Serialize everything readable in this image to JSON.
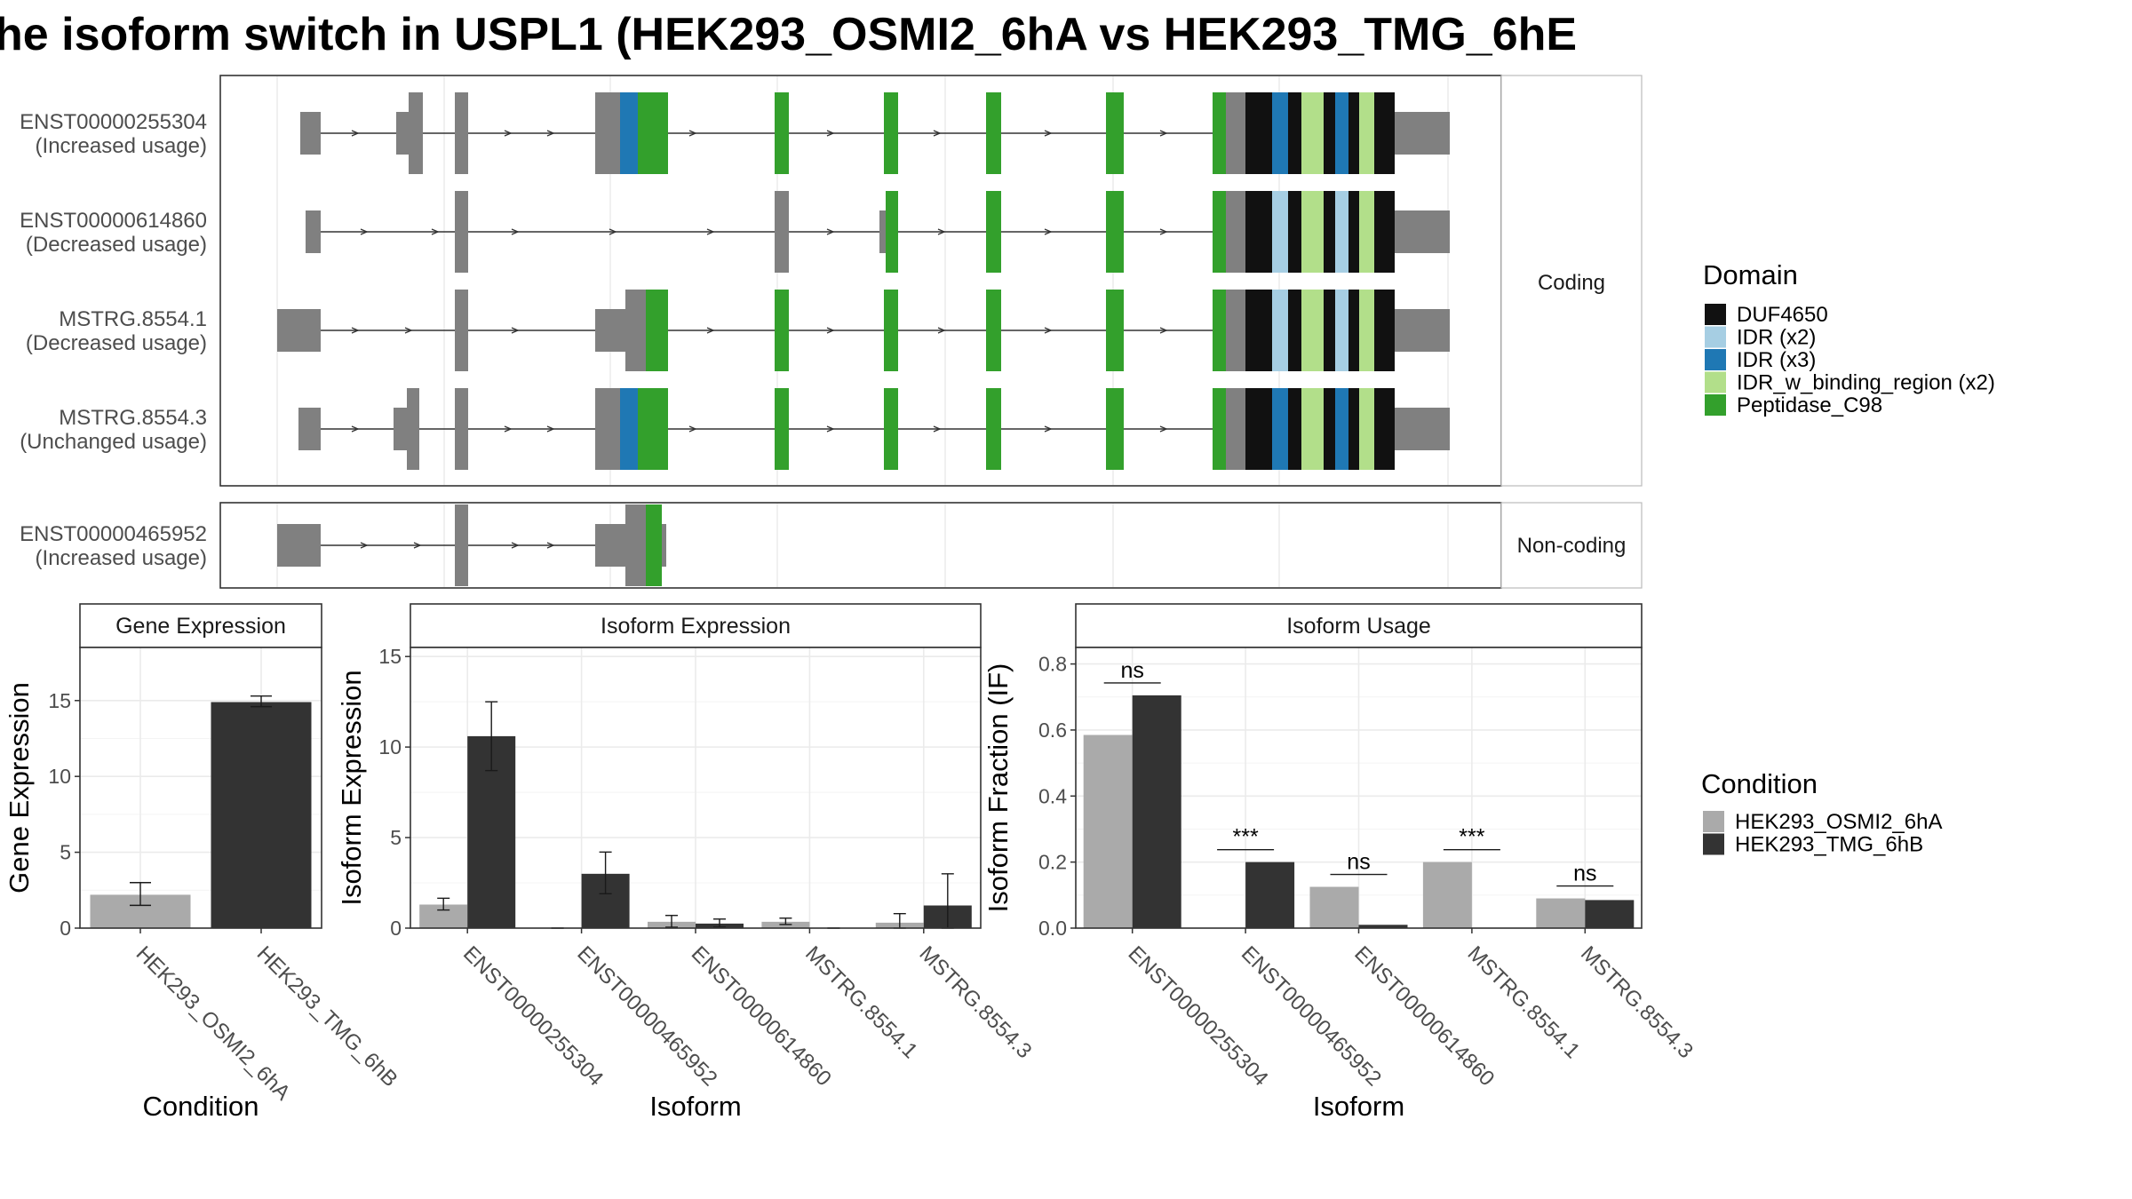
{
  "title": "he isoform switch in USPL1 (HEK293_OSMI2_6hA vs HEK293_TMG_6hE",
  "structure": {
    "coding_strip": "Coding",
    "noncoding_strip": "Non-coding",
    "transcripts": [
      {
        "id": "ENST00000255304",
        "usage": "(Increased usage)"
      },
      {
        "id": "ENST00000614860",
        "usage": "(Decreased usage)"
      },
      {
        "id": "MSTRG.8554.1",
        "usage": "(Decreased usage)"
      },
      {
        "id": "MSTRG.8554.3",
        "usage": "(Unchanged usage)"
      },
      {
        "id": "ENST00000465952",
        "usage": "(Increased usage)"
      }
    ]
  },
  "domain_legend": {
    "title": "Domain",
    "items": [
      {
        "label": "DUF4650",
        "color": "#111111"
      },
      {
        "label": "IDR (x2)",
        "color": "#a6cee3"
      },
      {
        "label": "IDR (x3)",
        "color": "#1f78b4"
      },
      {
        "label": "IDR_w_binding_region (x2)",
        "color": "#b2df8a"
      },
      {
        "label": "Peptidase_C98",
        "color": "#33a02c"
      }
    ]
  },
  "condition_legend": {
    "title": "Condition",
    "items": [
      {
        "label": "HEK293_OSMI2_6hA",
        "color": "#aaaaaa"
      },
      {
        "label": "HEK293_TMG_6hB",
        "color": "#333333"
      }
    ]
  },
  "chart_data": [
    {
      "type": "bar",
      "title": "Gene Expression",
      "xlabel": "Condition",
      "ylabel": "Gene Expression",
      "ylim": [
        0,
        18.5
      ],
      "yticks": [
        0,
        5,
        10,
        15
      ],
      "categories": [
        "HEK293_OSMI2_6hA",
        "HEK293_TMG_6hB"
      ],
      "values": [
        2.2,
        14.9
      ],
      "errors": [
        [
          1.5,
          3.0
        ],
        [
          14.6,
          15.3
        ]
      ]
    },
    {
      "type": "bar",
      "title": "Isoform Expression",
      "xlabel": "Isoform",
      "ylabel": "Isoform Expression",
      "ylim": [
        0,
        15.5
      ],
      "yticks": [
        0,
        5,
        10,
        15
      ],
      "categories": [
        "ENST00000255304",
        "ENST00000465952",
        "ENST00000614860",
        "MSTRG.8554.1",
        "MSTRG.8554.3"
      ],
      "series": [
        {
          "name": "HEK293_OSMI2_6hA",
          "values": [
            1.3,
            0.0,
            0.35,
            0.35,
            0.3
          ],
          "errors": [
            [
              1.0,
              1.65
            ],
            [
              0,
              0
            ],
            [
              0.05,
              0.7
            ],
            [
              0.2,
              0.55
            ],
            [
              0.0,
              0.8
            ]
          ]
        },
        {
          "name": "HEK293_TMG_6hB",
          "values": [
            10.6,
            3.0,
            0.25,
            0.0,
            1.25
          ],
          "errors": [
            [
              8.7,
              12.5
            ],
            [
              1.9,
              4.2
            ],
            [
              0.05,
              0.5
            ],
            [
              0,
              0
            ],
            [
              0.0,
              3.0
            ]
          ]
        }
      ]
    },
    {
      "type": "bar",
      "title": "Isoform Usage",
      "xlabel": "Isoform",
      "ylabel": "Isoform Fraction (IF)",
      "ylim": [
        0,
        0.85
      ],
      "yticks": [
        0.0,
        0.2,
        0.4,
        0.6,
        0.8
      ],
      "ytick_labels": [
        "0.0",
        "0.2",
        "0.4",
        "0.6",
        "0.8"
      ],
      "categories": [
        "ENST00000255304",
        "ENST00000465952",
        "ENST00000614860",
        "MSTRG.8554.1",
        "MSTRG.8554.3"
      ],
      "series": [
        {
          "name": "HEK293_OSMI2_6hA",
          "values": [
            0.585,
            0.0,
            0.125,
            0.2,
            0.09
          ]
        },
        {
          "name": "HEK293_TMG_6hB",
          "values": [
            0.705,
            0.2,
            0.01,
            0.0,
            0.085
          ]
        }
      ],
      "significance": [
        "ns",
        "***",
        "ns",
        "***",
        "ns"
      ]
    }
  ]
}
